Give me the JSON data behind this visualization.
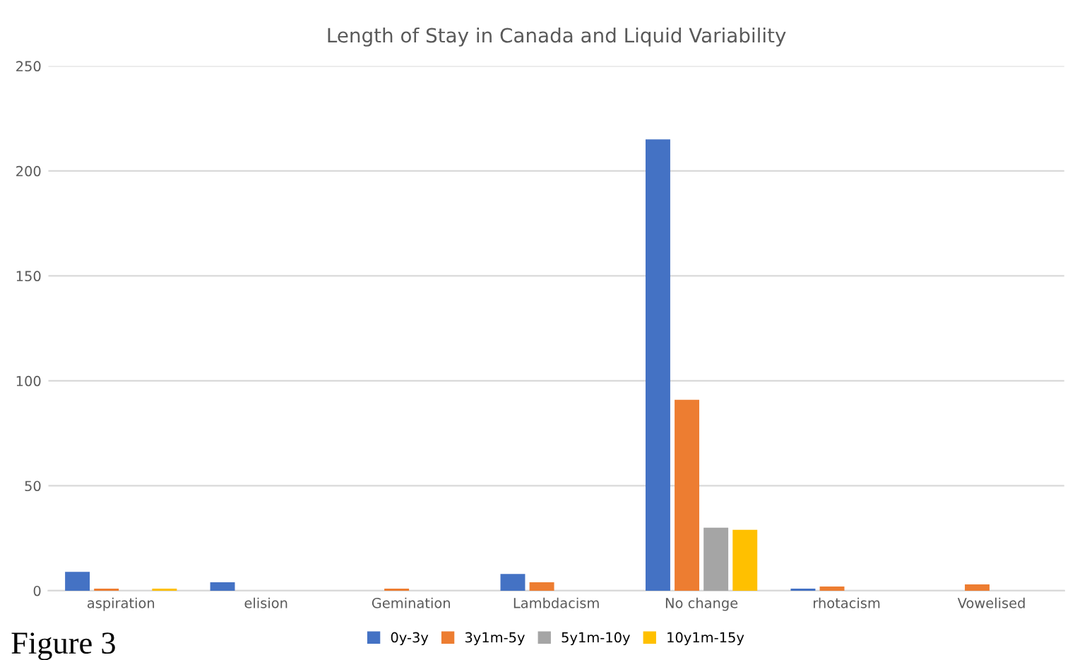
{
  "chart_data": {
    "type": "bar",
    "title": "Length of Stay in Canada and Liquid Variability",
    "categories": [
      "aspiration",
      "elision",
      "Gemination",
      "Lambdacism",
      "No change",
      "rhotacism",
      "Vowelised"
    ],
    "series": [
      {
        "name": "0y-3y",
        "color": "#4472c4",
        "values": [
          9,
          4,
          0,
          8,
          215,
          1,
          0
        ]
      },
      {
        "name": "3y1m-5y",
        "color": "#ed7d31",
        "values": [
          1,
          0,
          1,
          4,
          91,
          2,
          3
        ]
      },
      {
        "name": "5y1m-10y",
        "color": "#a5a5a5",
        "values": [
          0,
          0,
          0,
          0,
          30,
          0,
          0
        ]
      },
      {
        "name": "10y1m-15y",
        "color": "#ffc000",
        "values": [
          1,
          0,
          0,
          0,
          29,
          0,
          0
        ]
      }
    ],
    "ylim": [
      0,
      250
    ],
    "yticks": [
      0,
      50,
      100,
      150,
      200,
      250
    ],
    "grid": "y",
    "legend": "bottom",
    "annotations": [
      "Figure 3"
    ]
  }
}
